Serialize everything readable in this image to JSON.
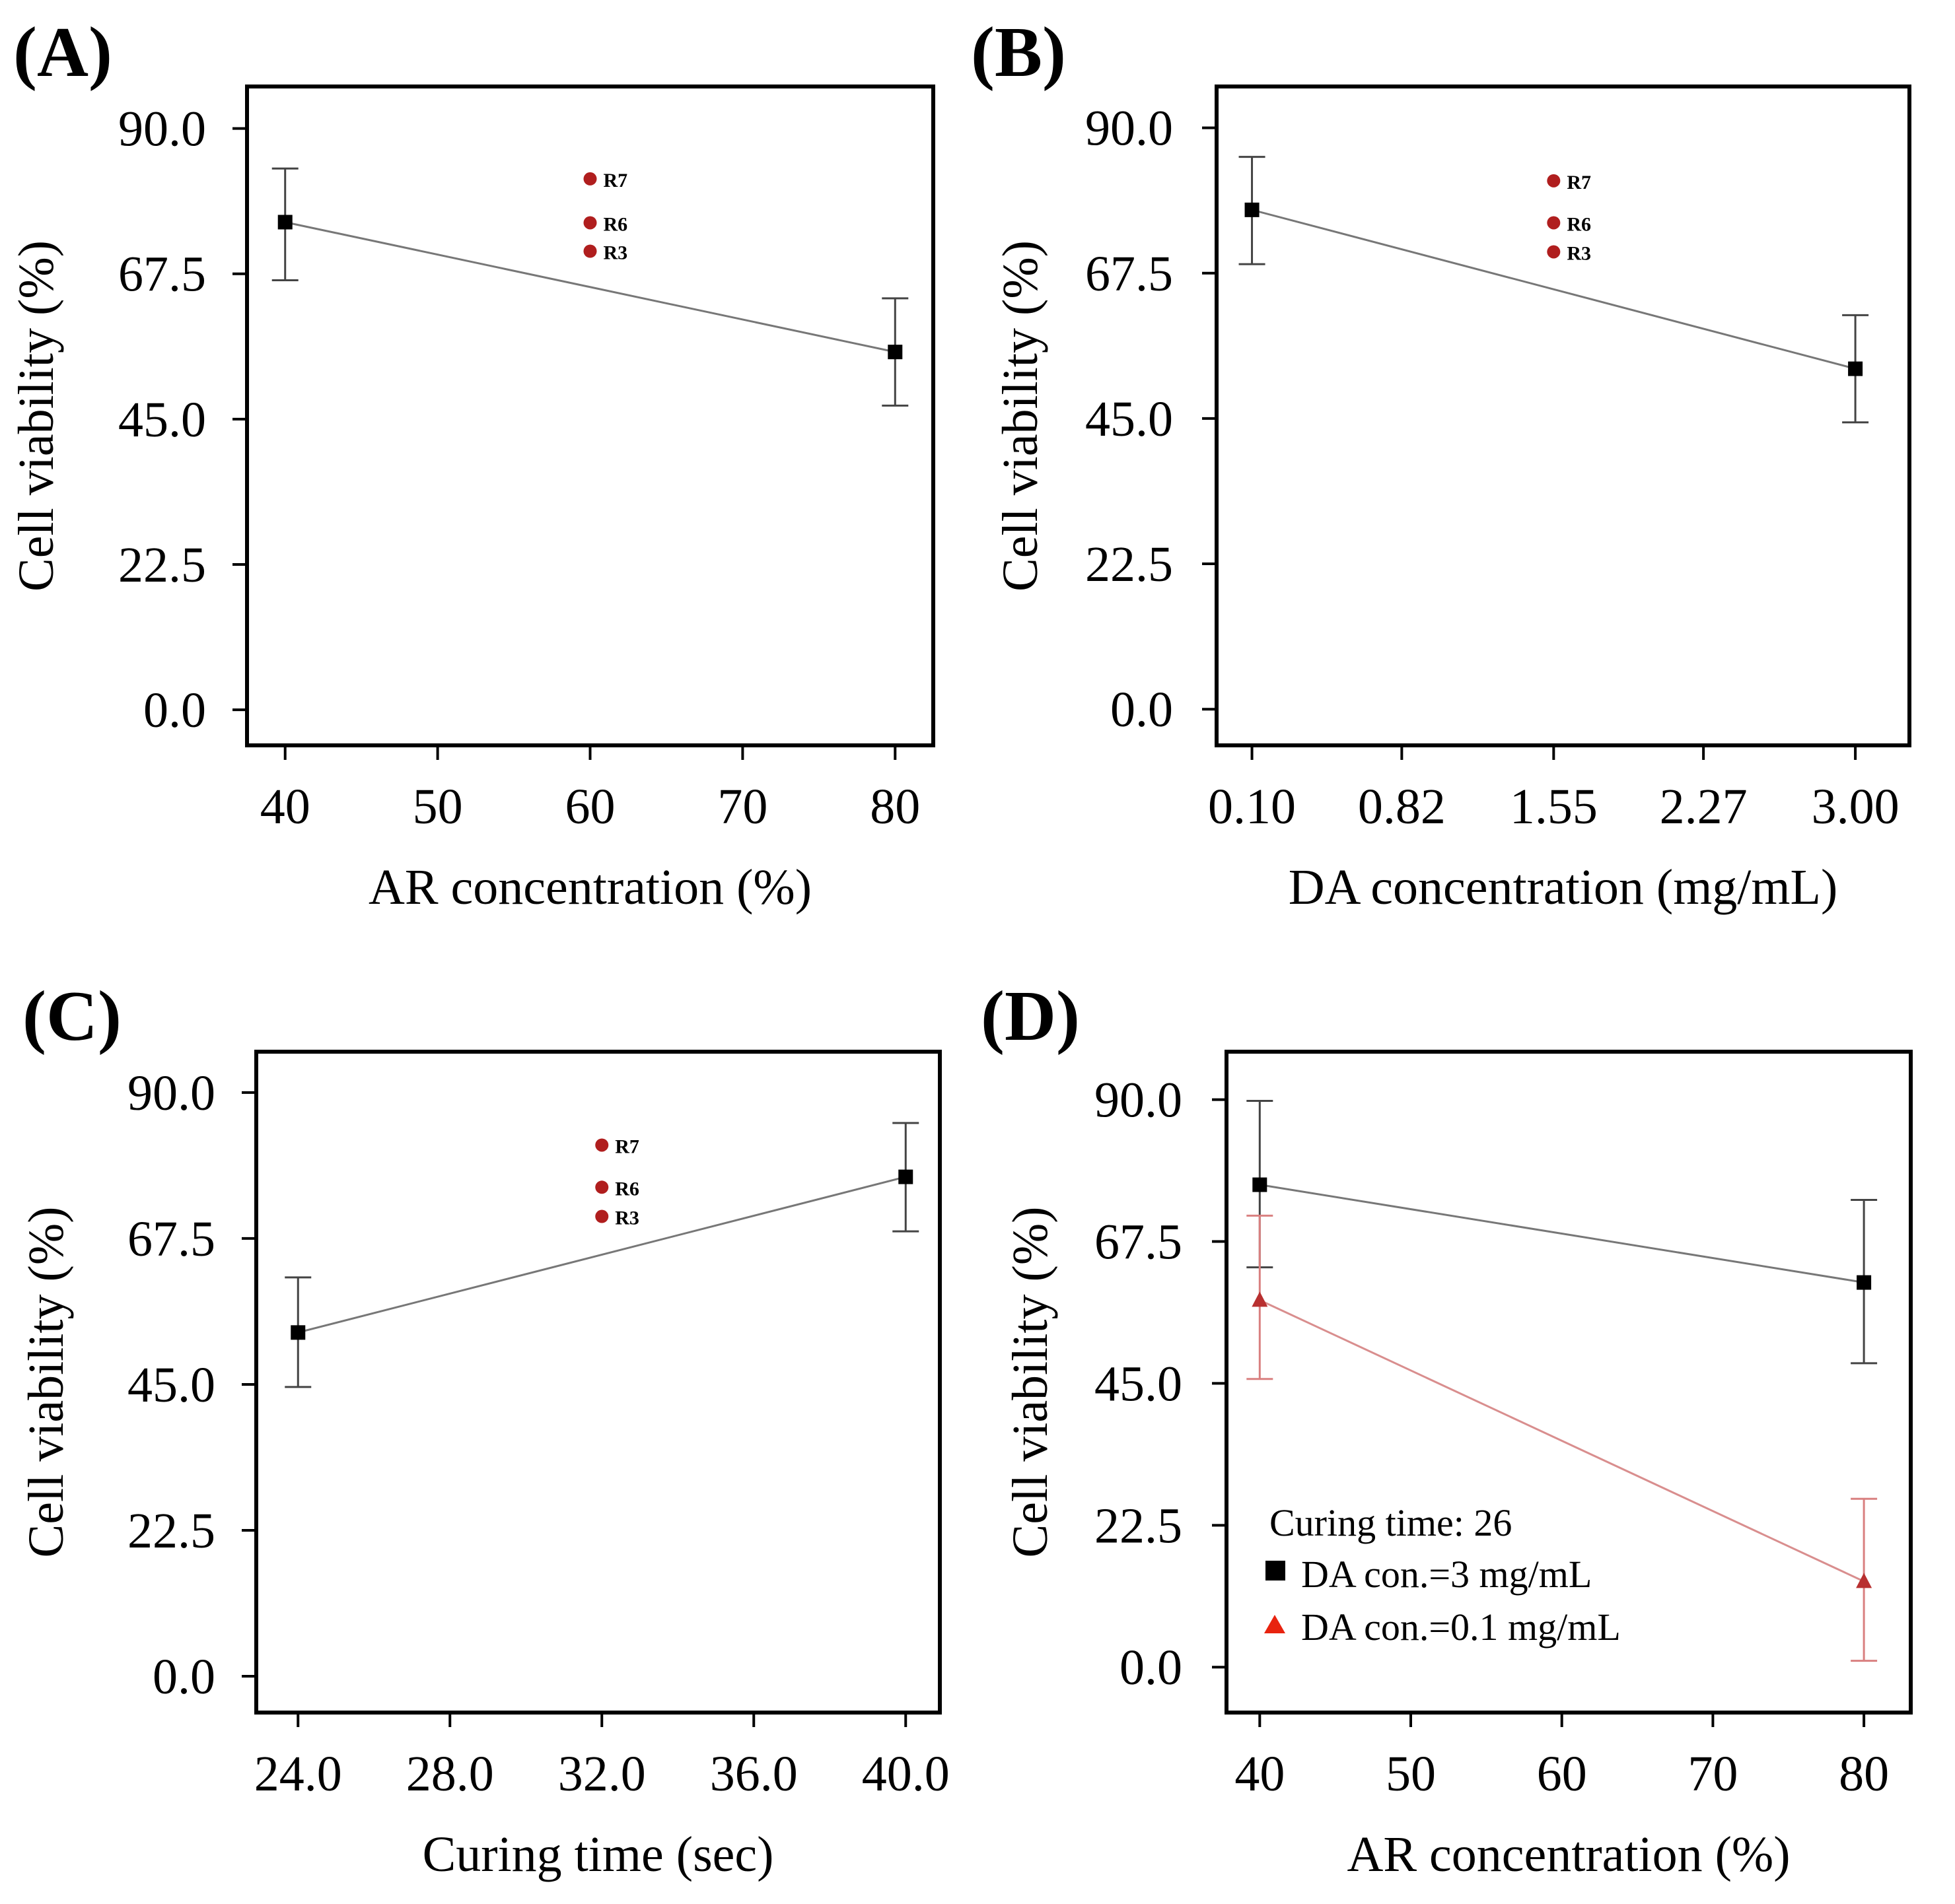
{
  "chart_data": [
    {
      "id": "A",
      "type": "line",
      "panel_label": "(A)",
      "xlabel": "AR concentration (%)",
      "ylabel": "Cell viability (%)",
      "x_ticks": [
        "40",
        "50",
        "60",
        "70",
        "80"
      ],
      "x_tick_values": [
        40,
        50,
        60,
        70,
        80
      ],
      "xlim": [
        37.5,
        82.5
      ],
      "y_ticks": [
        "0.0",
        "22.5",
        "45.0",
        "67.5",
        "90.0"
      ],
      "y_tick_values": [
        0,
        22.5,
        45,
        67.5,
        90
      ],
      "ylim": [
        -5.5,
        96.5
      ],
      "series": [
        {
          "name": "Cell viability",
          "color": "#000000",
          "line_color": "#777777",
          "marker": "square",
          "x": [
            40,
            80
          ],
          "y": [
            75.5,
            55.4
          ],
          "err_lo": [
            66.5,
            47.1
          ],
          "err_hi": [
            83.8,
            63.7
          ]
        }
      ],
      "points": [
        {
          "label": "R7",
          "x": 60,
          "y": 82.2,
          "color": "#b01e1e"
        },
        {
          "label": "R6",
          "x": 60,
          "y": 75.4,
          "color": "#b01e1e"
        },
        {
          "label": "R3",
          "x": 60,
          "y": 71.0,
          "color": "#b01e1e"
        }
      ]
    },
    {
      "id": "B",
      "type": "line",
      "panel_label": "(B)",
      "xlabel": "DA concentration (mg/mL)",
      "ylabel": "Cell viability (%)",
      "x_ticks": [
        "0.10",
        "0.82",
        "1.55",
        "2.27",
        "3.00"
      ],
      "x_tick_values": [
        0.1,
        0.82,
        1.55,
        2.27,
        3.0
      ],
      "xlim": [
        -0.07,
        3.26
      ],
      "y_ticks": [
        "0.0",
        "22.5",
        "45.0",
        "67.5",
        "90.0"
      ],
      "y_tick_values": [
        0,
        22.5,
        45,
        67.5,
        90
      ],
      "ylim": [
        -5.6,
        96.4
      ],
      "series": [
        {
          "name": "Cell viability",
          "color": "#000000",
          "line_color": "#777777",
          "marker": "square",
          "x": [
            0.1,
            3.0
          ],
          "y": [
            77.3,
            52.7
          ],
          "err_lo": [
            68.9,
            44.4
          ],
          "err_hi": [
            85.5,
            61.0
          ]
        }
      ],
      "points": [
        {
          "label": "R7",
          "x": 1.55,
          "y": 81.8,
          "color": "#b01e1e"
        },
        {
          "label": "R6",
          "x": 1.55,
          "y": 75.3,
          "color": "#b01e1e"
        },
        {
          "label": "R3",
          "x": 1.55,
          "y": 70.8,
          "color": "#b01e1e"
        }
      ]
    },
    {
      "id": "C",
      "type": "line",
      "panel_label": "(C)",
      "xlabel": "Curing time (sec)",
      "ylabel": "Cell viability (%)",
      "x_ticks": [
        "24.0",
        "28.0",
        "32.0",
        "36.0",
        "40.0"
      ],
      "x_tick_values": [
        24,
        28,
        32,
        36,
        40
      ],
      "xlim": [
        22.9,
        40.9
      ],
      "y_ticks": [
        "0.0",
        "22.5",
        "45.0",
        "67.5",
        "90.0"
      ],
      "y_tick_values": [
        0,
        22.5,
        45,
        67.5,
        90
      ],
      "ylim": [
        -5.6,
        96.3
      ],
      "series": [
        {
          "name": "Cell viability",
          "color": "#000000",
          "line_color": "#777777",
          "marker": "square",
          "x": [
            24,
            40
          ],
          "y": [
            53.0,
            77.0
          ],
          "err_lo": [
            44.6,
            68.6
          ],
          "err_hi": [
            61.5,
            85.3
          ]
        }
      ],
      "points": [
        {
          "label": "R7",
          "x": 32,
          "y": 81.9,
          "color": "#b01e1e"
        },
        {
          "label": "R6",
          "x": 32,
          "y": 75.4,
          "color": "#b01e1e"
        },
        {
          "label": "R3",
          "x": 32,
          "y": 70.9,
          "color": "#b01e1e"
        }
      ]
    },
    {
      "id": "D",
      "type": "line",
      "panel_label": "(D)",
      "xlabel": "AR concentration (%)",
      "ylabel": "Cell viability (%)",
      "x_ticks": [
        "40",
        "50",
        "60",
        "70",
        "80"
      ],
      "x_tick_values": [
        40,
        50,
        60,
        70,
        80
      ],
      "xlim": [
        37.8,
        83.1
      ],
      "y_ticks": [
        "0.0",
        "22.5",
        "45.0",
        "67.5",
        "90.0"
      ],
      "y_tick_values": [
        0,
        22.5,
        45,
        67.5,
        90
      ],
      "ylim": [
        -7.2,
        97.6
      ],
      "legend": {
        "title": "Curing time: 26",
        "position": "bottom-left"
      },
      "series": [
        {
          "name": "DA con.=3 mg/mL",
          "color": "#000000",
          "line_color": "#777777",
          "marker": "square",
          "x": [
            40,
            80
          ],
          "y": [
            76.5,
            61.0
          ],
          "err_lo": [
            63.4,
            48.2
          ],
          "err_hi": [
            89.8,
            74.1
          ]
        },
        {
          "name": "DA con.=0.1 mg/mL",
          "color": "#e8230f",
          "line_color": "#d98e8e",
          "err_color": "#d98080",
          "marker_color": "#b83030",
          "marker": "triangle",
          "x": [
            40,
            80
          ],
          "y": [
            58.2,
            13.6
          ],
          "err_lo": [
            45.7,
            1.0
          ],
          "err_hi": [
            71.6,
            26.7
          ]
        }
      ],
      "points": []
    }
  ]
}
